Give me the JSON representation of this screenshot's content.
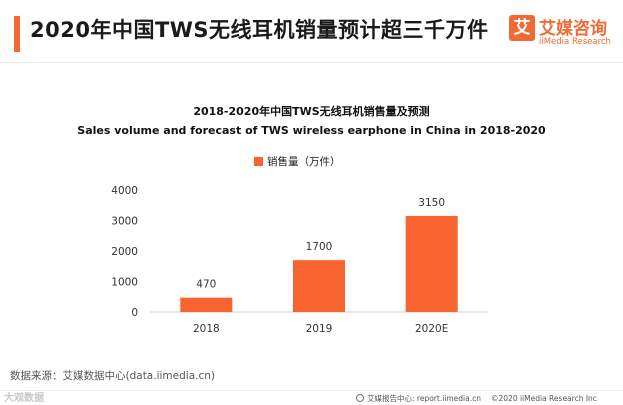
{
  "header": {
    "title": "2020年中国TWS无线耳机销量预计超三千万件",
    "accent_color": "#f26a33"
  },
  "brand": {
    "mark": "艾",
    "name_cn": "艾媒咨询",
    "name_en": "iiMedia Research"
  },
  "chart_data": {
    "type": "bar",
    "title": "2018-2020年中国TWS无线耳机销售量及预测",
    "subtitle": "Sales volume and forecast of TWS wireless earphone in China in 2018-2020",
    "categories": [
      "2018",
      "2019",
      "2020E"
    ],
    "series": [
      {
        "name": "销售量（万件）",
        "values": [
          470,
          1700,
          3150
        ],
        "color": "#f8642f"
      }
    ],
    "data_labels": [
      "470",
      "1700",
      "3150"
    ],
    "ylim": [
      0,
      4000
    ],
    "yticks": [
      0,
      1000,
      2000,
      3000,
      4000
    ],
    "ytick_labels": [
      "0",
      "1000",
      "2000",
      "3000",
      "4000"
    ],
    "xlabel": "",
    "ylabel": "",
    "grid": false,
    "legend_position": "top-center"
  },
  "footer": {
    "source": "数据来源：艾媒数据中心(data.iimedia.cn)",
    "watermark": "大观数据",
    "report_center": "艾媒报告中心: report.iimedia.cn",
    "copyright": "©2020  iiMedia Research  Inc"
  }
}
